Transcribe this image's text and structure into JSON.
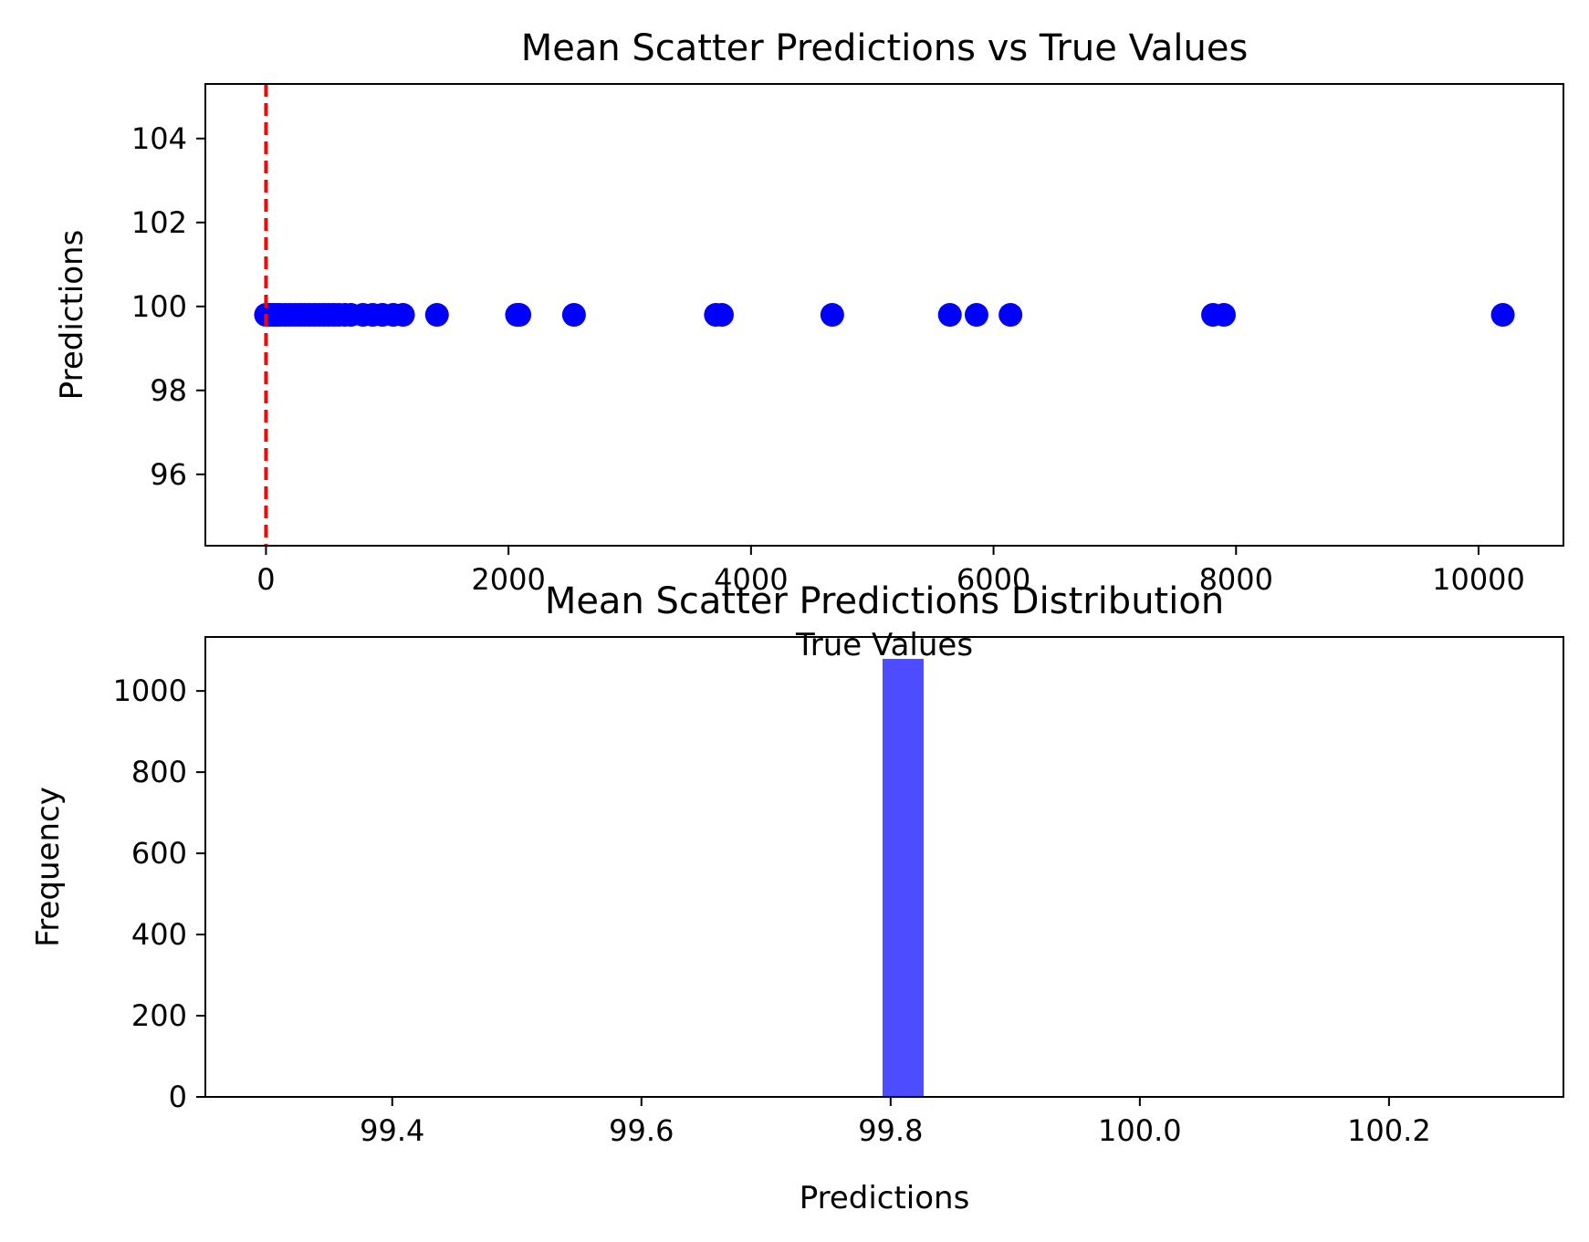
{
  "chart_data": [
    {
      "type": "scatter",
      "title": "Mean Scatter Predictions vs True Values",
      "xlabel": "True Values",
      "ylabel": "Predictions",
      "xlim": [
        -500,
        10700
      ],
      "ylim": [
        94.3,
        105.3
      ],
      "xticks": [
        0,
        2000,
        4000,
        6000,
        8000,
        10000
      ],
      "yticks": [
        96,
        98,
        100,
        102,
        104
      ],
      "grid": false,
      "point_color": "#0000ff",
      "reference_line": {
        "x": 0,
        "color": "#ff0000",
        "style": "dashed"
      },
      "points": [
        {
          "x": 0,
          "y": 99.8
        },
        {
          "x": 30,
          "y": 99.8
        },
        {
          "x": 60,
          "y": 99.8
        },
        {
          "x": 90,
          "y": 99.8
        },
        {
          "x": 120,
          "y": 99.8
        },
        {
          "x": 160,
          "y": 99.8
        },
        {
          "x": 200,
          "y": 99.8
        },
        {
          "x": 240,
          "y": 99.8
        },
        {
          "x": 280,
          "y": 99.8
        },
        {
          "x": 320,
          "y": 99.8
        },
        {
          "x": 360,
          "y": 99.8
        },
        {
          "x": 400,
          "y": 99.8
        },
        {
          "x": 440,
          "y": 99.8
        },
        {
          "x": 480,
          "y": 99.8
        },
        {
          "x": 520,
          "y": 99.8
        },
        {
          "x": 560,
          "y": 99.8
        },
        {
          "x": 600,
          "y": 99.8
        },
        {
          "x": 650,
          "y": 99.8
        },
        {
          "x": 700,
          "y": 99.8
        },
        {
          "x": 800,
          "y": 99.8
        },
        {
          "x": 880,
          "y": 99.8
        },
        {
          "x": 960,
          "y": 99.8
        },
        {
          "x": 1050,
          "y": 99.8
        },
        {
          "x": 1130,
          "y": 99.8
        },
        {
          "x": 1410,
          "y": 99.8
        },
        {
          "x": 2070,
          "y": 99.8
        },
        {
          "x": 2090,
          "y": 99.8
        },
        {
          "x": 2540,
          "y": 99.8
        },
        {
          "x": 3710,
          "y": 99.8
        },
        {
          "x": 3760,
          "y": 99.8
        },
        {
          "x": 4670,
          "y": 99.8
        },
        {
          "x": 5640,
          "y": 99.8
        },
        {
          "x": 5860,
          "y": 99.8
        },
        {
          "x": 6140,
          "y": 99.8
        },
        {
          "x": 7810,
          "y": 99.8
        },
        {
          "x": 7900,
          "y": 99.8
        },
        {
          "x": 10200,
          "y": 99.8
        }
      ]
    },
    {
      "type": "bar",
      "title": "Mean Scatter Predictions Distribution",
      "xlabel": "Predictions",
      "ylabel": "Frequency",
      "xlim": [
        99.25,
        100.34
      ],
      "ylim": [
        0,
        1133
      ],
      "xticks": [
        "99.4",
        "99.6",
        "99.8",
        "100.0",
        "100.2"
      ],
      "yticks": [
        0,
        200,
        400,
        600,
        800,
        1000
      ],
      "grid": false,
      "bar_color": "#4d4dff",
      "bins": [
        {
          "x0": 99.7935,
          "x1": 99.8265,
          "count": 1079
        }
      ]
    }
  ]
}
